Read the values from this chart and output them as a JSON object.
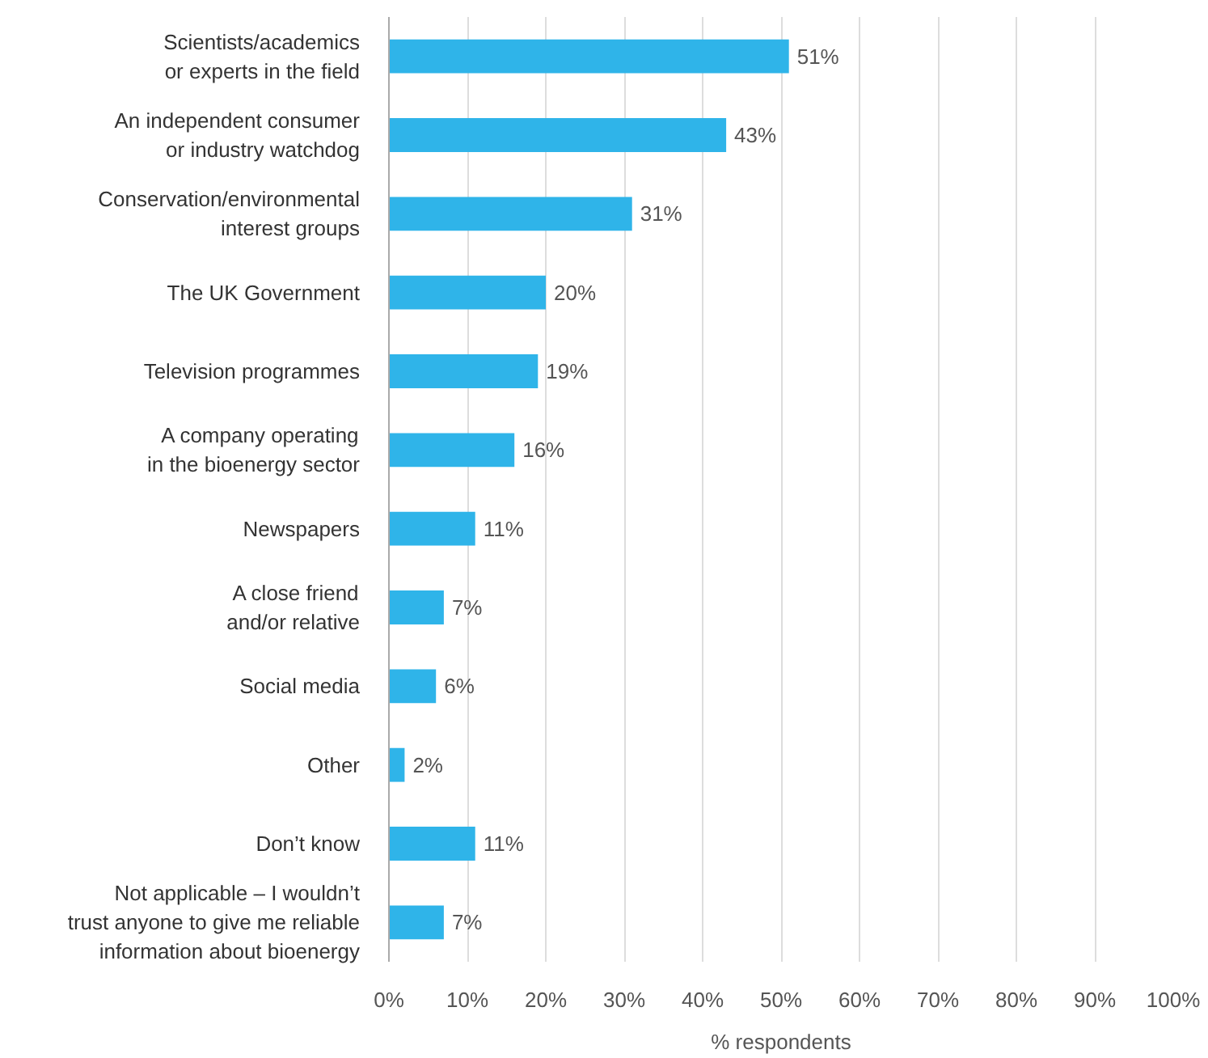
{
  "chart_data": {
    "type": "bar",
    "orientation": "horizontal",
    "xlabel": "% respondents",
    "categories": [
      "Scientists/academics\nor experts in the field",
      "An independent consumer\nor industry watchdog",
      "Conservation/environmental\ninterest groups",
      "The UK Government",
      "Television programmes",
      "A company operating\nin the bioenergy sector",
      "Newspapers",
      "A close friend\nand/or relative",
      "Social media",
      "Other",
      "Don’t know",
      "Not applicable – I wouldn’t\ntrust anyone to give me reliable\ninformation about bioenergy"
    ],
    "values": [
      51,
      43,
      31,
      20,
      19,
      16,
      11,
      7,
      6,
      2,
      11,
      7
    ],
    "value_labels": [
      "51%",
      "43%",
      "31%",
      "20%",
      "19%",
      "16%",
      "11%",
      "7%",
      "6%",
      "2%",
      "11%",
      "7%"
    ],
    "color": "#2fb4e9",
    "xlim": [
      0,
      100
    ],
    "xticks": [
      {
        "value": 0,
        "label": "0%"
      },
      {
        "value": 10,
        "label": "10%"
      },
      {
        "value": 20,
        "label": "20%"
      },
      {
        "value": 30,
        "label": "30%"
      },
      {
        "value": 40,
        "label": "40%"
      },
      {
        "value": 50,
        "label": "50%"
      },
      {
        "value": 60,
        "label": "60%"
      },
      {
        "value": 70,
        "label": "70%"
      },
      {
        "value": 80,
        "label": "80%"
      },
      {
        "value": 90,
        "label": "90%"
      },
      {
        "value": 100,
        "label": "100%"
      }
    ],
    "grid": "x"
  }
}
